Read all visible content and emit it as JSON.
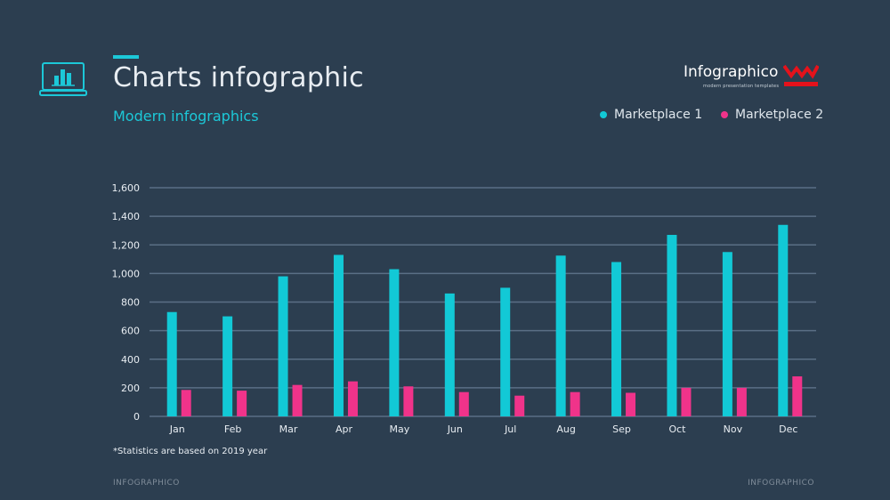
{
  "header": {
    "title": "Charts infographic",
    "subtitle": "Modern infographics",
    "icon": "laptop-chart-icon"
  },
  "brand": {
    "name": "Infographico",
    "tagline": "modern presentation templates",
    "logo": "infographico-logo"
  },
  "colors": {
    "background": "#2c3e50",
    "accent": "#1cc8d8",
    "series1": "#12c9d6",
    "series2": "#f0338a",
    "brand_red": "#e5121b"
  },
  "legend": [
    {
      "name": "Marketplace 1",
      "color": "#12c9d6"
    },
    {
      "name": "Marketplace 2",
      "color": "#f0338a"
    }
  ],
  "chart_data": {
    "type": "bar",
    "title": "",
    "xlabel": "",
    "ylabel": "",
    "categories": [
      "Jan",
      "Feb",
      "Mar",
      "Apr",
      "May",
      "Jun",
      "Jul",
      "Aug",
      "Sep",
      "Oct",
      "Nov",
      "Dec"
    ],
    "series": [
      {
        "name": "Marketplace 1",
        "values": [
          730,
          700,
          980,
          1130,
          1030,
          860,
          900,
          1125,
          1080,
          1270,
          1150,
          1340
        ]
      },
      {
        "name": "Marketplace 2",
        "values": [
          185,
          180,
          220,
          245,
          210,
          170,
          145,
          170,
          165,
          200,
          200,
          280
        ]
      }
    ],
    "ylim": [
      0,
      1600
    ],
    "yticks": [
      "0",
      "200",
      "400",
      "600",
      "800",
      "1,000",
      "1,200",
      "1,400",
      "1,600"
    ],
    "grid": true,
    "legend_position": "top-right"
  },
  "footnote": "*Statistics are based on 2019 year",
  "footer": {
    "left": "INFOGRAPHICO",
    "right": "INFOGRAPHICO"
  }
}
